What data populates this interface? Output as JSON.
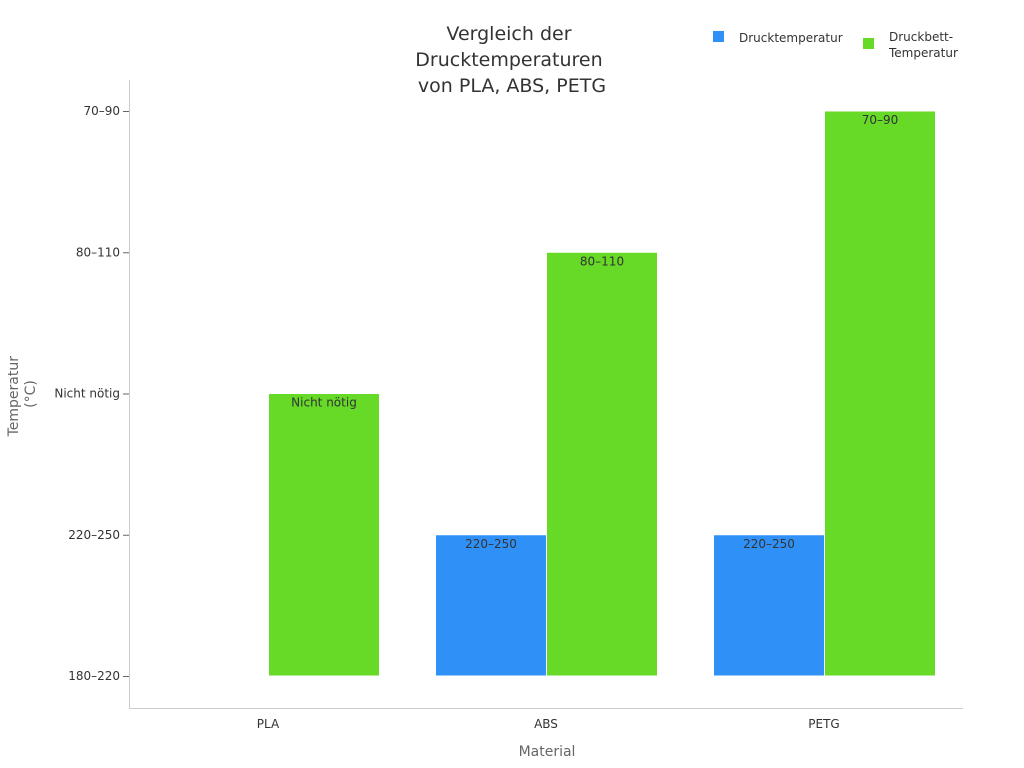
{
  "chart_data": {
    "type": "bar",
    "title_lines": [
      "Vergleich der",
      "Drucktemperaturen",
      "von PLA, ABS, PETG"
    ],
    "xlabel": "Material",
    "ylabel_lines": [
      "Temperatur",
      "(°C)"
    ],
    "categories": [
      "PLA",
      "ABS",
      "PETG"
    ],
    "y_categories": [
      "180–220",
      "220–250",
      "Nicht nötig",
      "80–110",
      "70–90"
    ],
    "series": [
      {
        "name": "Drucktemperatur",
        "color": "#2f91f7",
        "values": [
          null,
          "220–250",
          "220–250"
        ],
        "data_labels": [
          null,
          "220–250",
          "220–250"
        ]
      },
      {
        "name": "Druckbett-\nTemperatur",
        "legend_lines": [
          "Druckbett-",
          "Temperatur"
        ],
        "color": "#66da26",
        "values": [
          "Nicht nötig",
          "80–110",
          "70–90"
        ],
        "data_labels": [
          "Nicht nötig",
          "80–110",
          "70–90"
        ]
      }
    ],
    "legend_position": "top-right",
    "grid": false
  }
}
